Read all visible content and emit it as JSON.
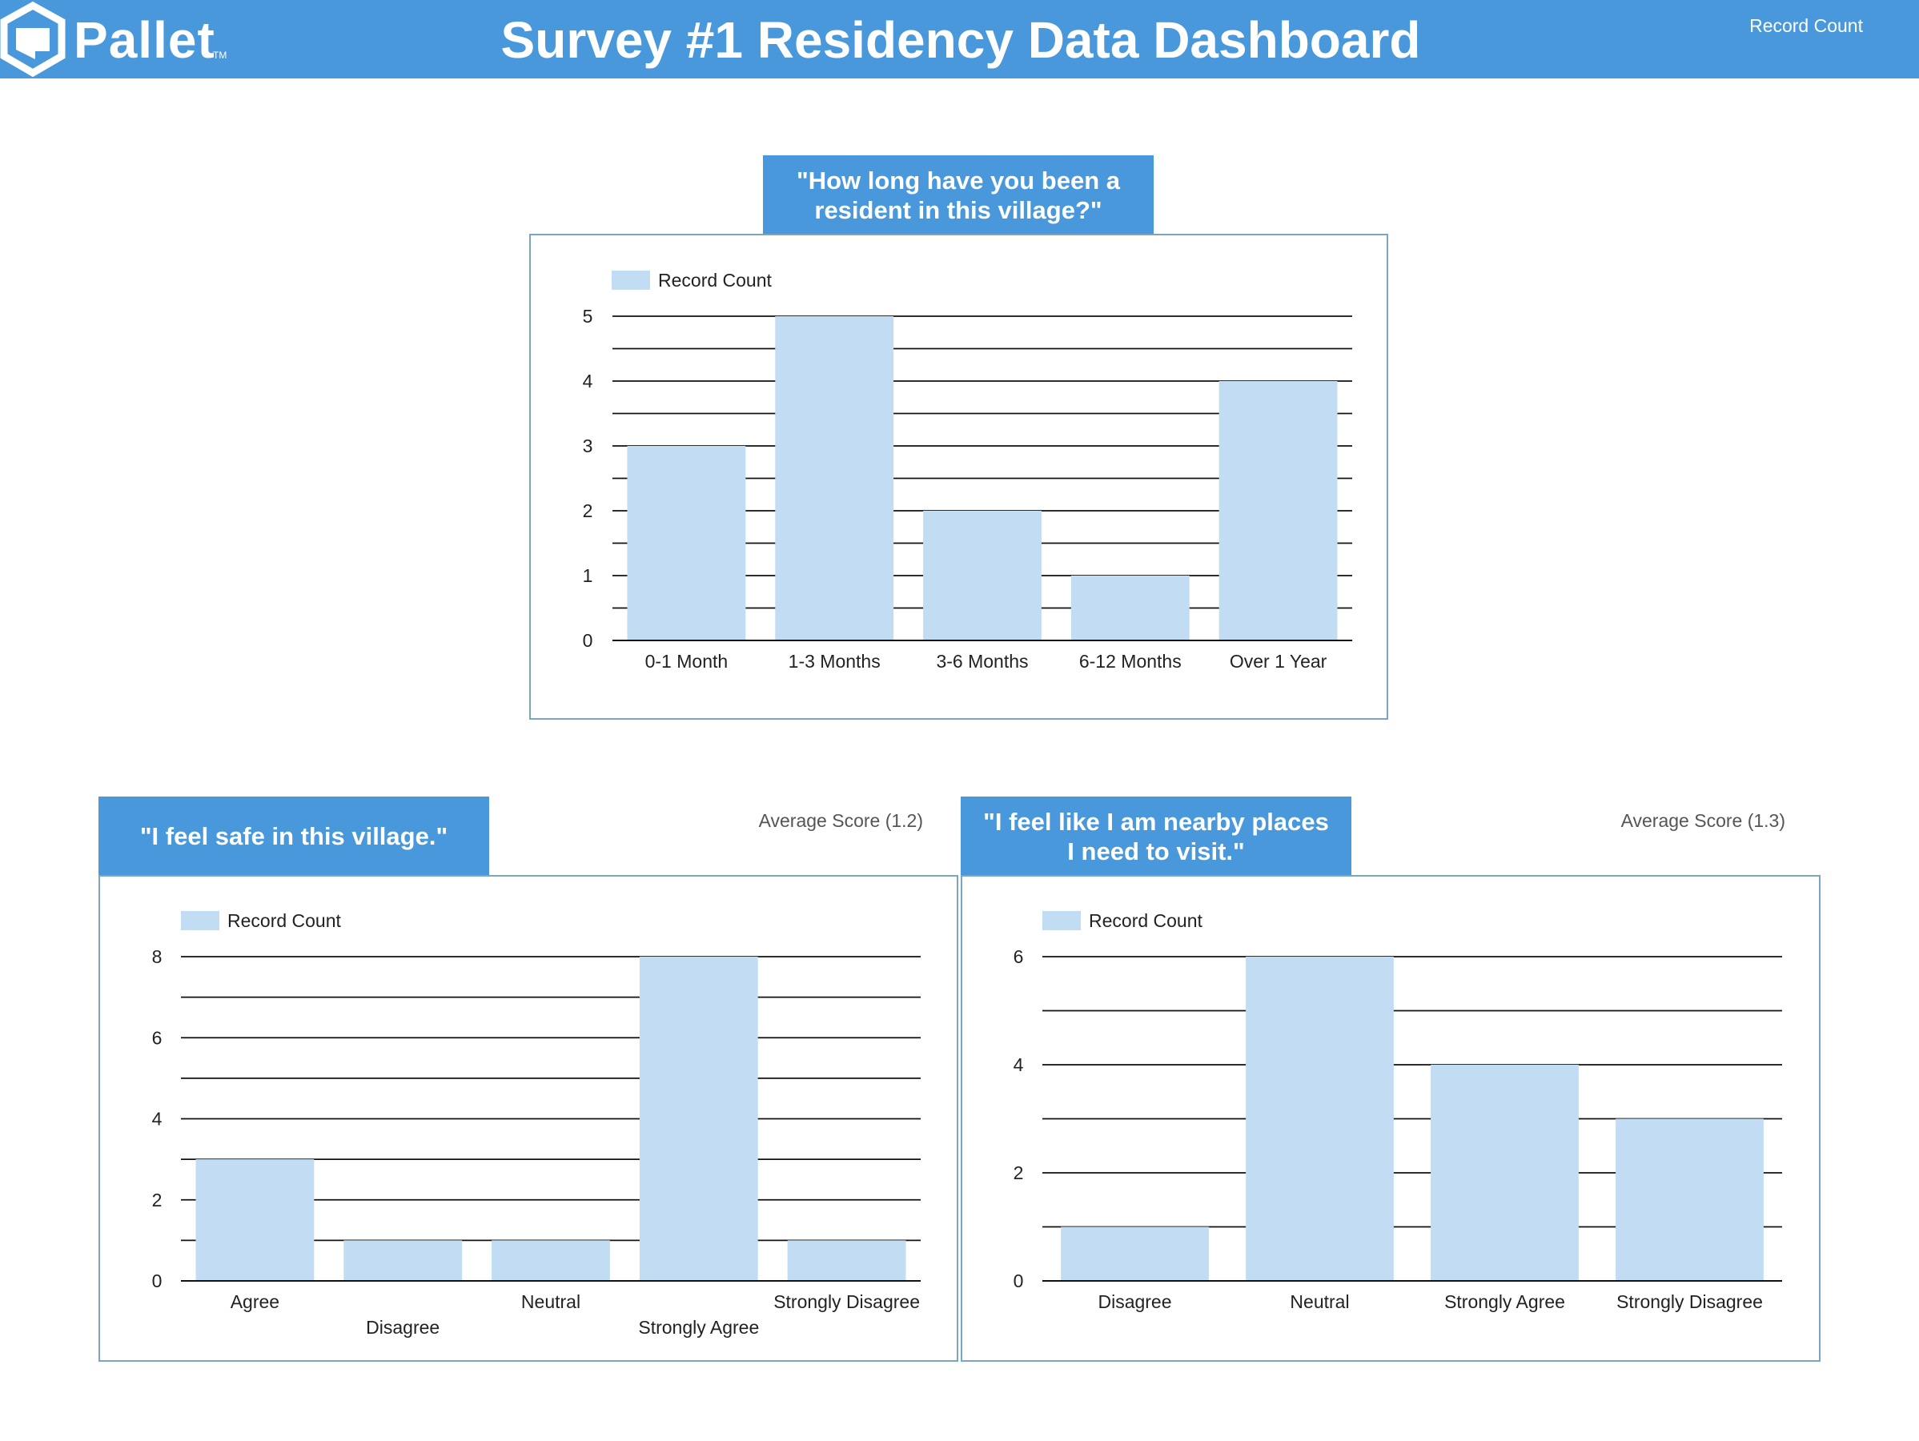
{
  "header": {
    "logo_text": "Pallet",
    "logo_tm": "TM",
    "title": "Survey #1 Residency Data Dashboard",
    "top_right_note": "Record Count"
  },
  "colors": {
    "header_bg": "#4a98dc",
    "bar_fill": "#c2ddf3",
    "panel_border": "#7aa6c2"
  },
  "icons": {
    "logo": "pallet-house-outline-icon"
  },
  "residency": {
    "question": "\"How long have you been a resident in this village?\""
  },
  "safe": {
    "question": "\"I feel safe in this village.\"",
    "avg_score": "Average Score (1.2)"
  },
  "nearby": {
    "question": "\"I feel like I am nearby places I need to visit.\"",
    "avg_score": "Average Score (1.3)"
  },
  "chart_data": [
    {
      "id": "residency",
      "type": "bar",
      "legend": "Record Count",
      "legend_position": "top-left",
      "categories": [
        "0-1 Month",
        "1-3 Months",
        "3-6 Months",
        "6-12 Months",
        "Over 1 Year"
      ],
      "values": [
        3,
        5,
        2,
        1,
        4
      ],
      "ylim": [
        0,
        5
      ],
      "yticks": [
        0,
        1,
        2,
        3,
        4,
        5
      ],
      "grid": true
    },
    {
      "id": "safe",
      "type": "bar",
      "legend": "Record Count",
      "legend_position": "top-left",
      "categories": [
        "Agree",
        "Disagree",
        "Neutral",
        "Strongly Agree",
        "Strongly Disagree"
      ],
      "values": [
        3,
        1,
        1,
        8,
        1
      ],
      "ylim": [
        0,
        8
      ],
      "yticks": [
        0,
        2,
        4,
        6,
        8
      ],
      "grid": true
    },
    {
      "id": "nearby",
      "type": "bar",
      "legend": "Record Count",
      "legend_position": "top-left",
      "categories": [
        "Disagree",
        "Neutral",
        "Strongly Agree",
        "Strongly Disagree"
      ],
      "values": [
        1,
        6,
        4,
        3
      ],
      "ylim": [
        0,
        6
      ],
      "yticks": [
        0,
        2,
        4,
        6
      ],
      "grid": true
    }
  ]
}
